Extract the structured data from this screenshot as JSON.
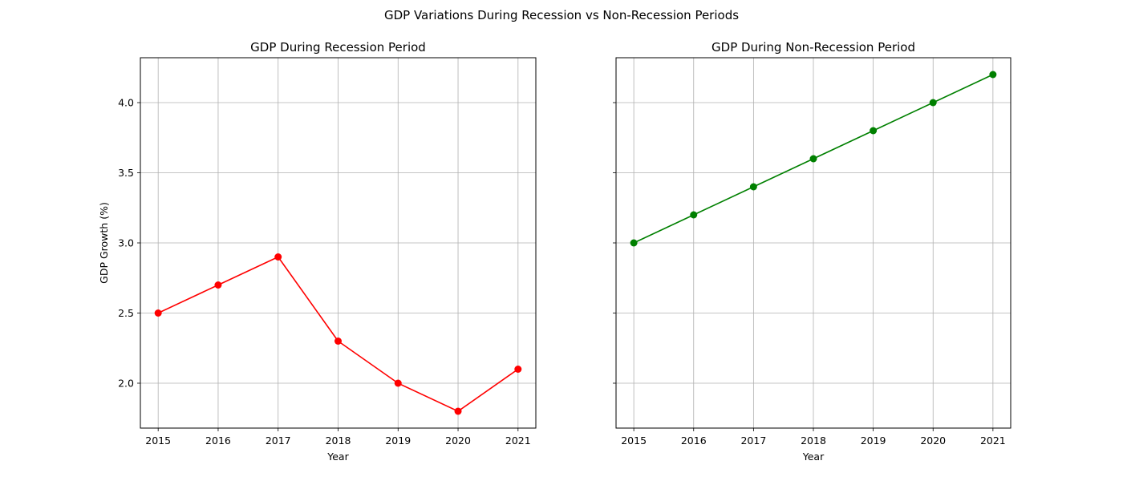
{
  "figure": {
    "suptitle": "GDP Variations During Recession vs Non-Recession Periods"
  },
  "chart_data": [
    {
      "type": "line",
      "title": "GDP During Recession Period",
      "xlabel": "Year",
      "ylabel": "GDP Growth (%)",
      "x": [
        "2015",
        "2016",
        "2017",
        "2018",
        "2019",
        "2020",
        "2021"
      ],
      "series": [
        {
          "values": [
            2.5,
            2.7,
            2.9,
            2.3,
            2.0,
            1.8,
            2.1
          ],
          "color": "#ff0000",
          "marker": "circle"
        }
      ],
      "yticks": [
        "2.0",
        "2.5",
        "3.0",
        "3.5",
        "4.0"
      ],
      "ylim": [
        1.68,
        4.32
      ],
      "grid": true,
      "shared_y": true
    },
    {
      "type": "line",
      "title": "GDP During Non-Recession Period",
      "xlabel": "Year",
      "ylabel": "",
      "x": [
        "2015",
        "2016",
        "2017",
        "2018",
        "2019",
        "2020",
        "2021"
      ],
      "series": [
        {
          "values": [
            3.0,
            3.2,
            3.4,
            3.6,
            3.8,
            4.0,
            4.2
          ],
          "color": "#008000",
          "marker": "circle"
        }
      ],
      "yticks": [
        "2.0",
        "2.5",
        "3.0",
        "3.5",
        "4.0"
      ],
      "ylim": [
        1.68,
        4.32
      ],
      "grid": true,
      "shared_y": true,
      "show_ytick_labels": false
    }
  ]
}
